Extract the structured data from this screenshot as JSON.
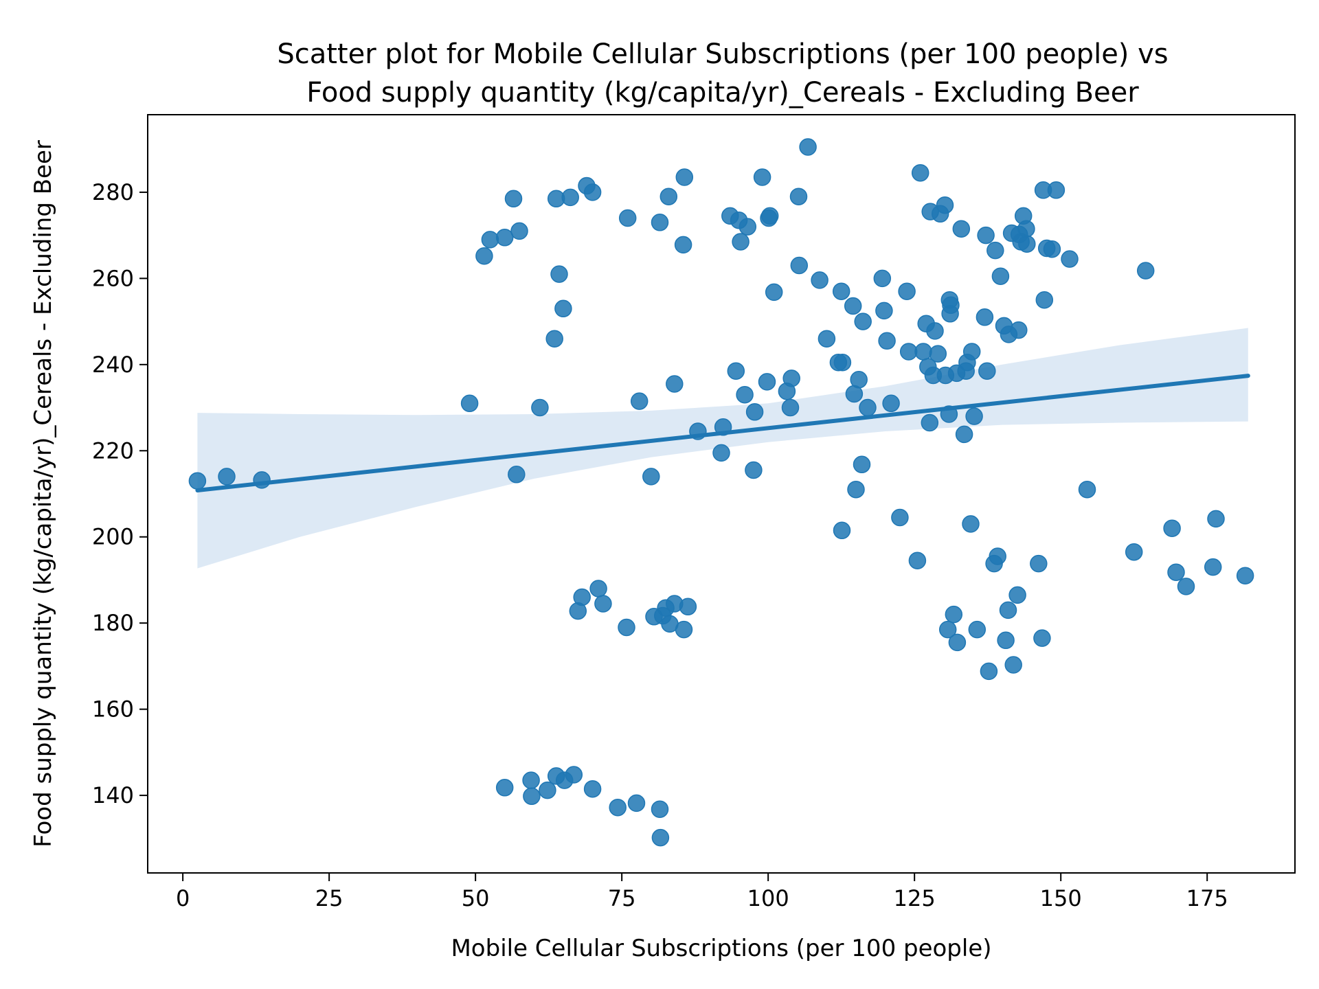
{
  "chart_data": {
    "type": "scatter",
    "title_lines": [
      "Scatter plot for Mobile Cellular Subscriptions (per 100 people) vs",
      "Food supply quantity (kg/capita/yr)_Cereals - Excluding Beer"
    ],
    "xlabel": "Mobile Cellular Subscriptions (per 100 people)",
    "ylabel": "Food supply quantity (kg/capita/yr)_Cereals - Excluding Beer",
    "xlim": [
      -6,
      190
    ],
    "ylim": [
      122,
      298
    ],
    "x_ticks": [
      0,
      25,
      50,
      75,
      100,
      125,
      150,
      175
    ],
    "y_ticks": [
      140,
      160,
      180,
      200,
      220,
      240,
      260,
      280
    ],
    "grid": false,
    "colors": {
      "points": "#1f77b4",
      "fit_line": "#1f77b4",
      "confidence_band": "#c6dbef"
    },
    "regression": {
      "start": [
        2.5,
        210.8
      ],
      "end": [
        182,
        237.4
      ]
    },
    "confidence_band": [
      {
        "x": 2.5,
        "lower": 192.7,
        "upper": 228.8
      },
      {
        "x": 20,
        "lower": 200,
        "upper": 228.5
      },
      {
        "x": 40,
        "lower": 207,
        "upper": 228.3
      },
      {
        "x": 60,
        "lower": 213.5,
        "upper": 228.5
      },
      {
        "x": 80,
        "lower": 218.5,
        "upper": 229.3
      },
      {
        "x": 100,
        "lower": 222,
        "upper": 231
      },
      {
        "x": 120,
        "lower": 224.5,
        "upper": 235
      },
      {
        "x": 140,
        "lower": 226,
        "upper": 240
      },
      {
        "x": 160,
        "lower": 226.5,
        "upper": 244.5
      },
      {
        "x": 182,
        "lower": 226.8,
        "upper": 248.5
      }
    ],
    "points": [
      [
        2.5,
        213
      ],
      [
        7.5,
        214
      ],
      [
        13.5,
        213.2
      ],
      [
        49,
        231
      ],
      [
        51.5,
        265.2
      ],
      [
        52.5,
        269
      ],
      [
        55,
        269.5
      ],
      [
        56.5,
        278.5
      ],
      [
        57.5,
        271
      ],
      [
        57,
        214.5
      ],
      [
        61,
        230
      ],
      [
        63.5,
        246
      ],
      [
        63.8,
        278.5
      ],
      [
        64.3,
        261
      ],
      [
        65,
        253
      ],
      [
        66.2,
        278.8
      ],
      [
        69,
        281.5
      ],
      [
        70,
        280
      ],
      [
        76,
        274
      ],
      [
        78,
        231.5
      ],
      [
        80,
        214
      ],
      [
        81.5,
        273
      ],
      [
        83,
        279
      ],
      [
        84,
        235.5
      ],
      [
        85.5,
        267.8
      ],
      [
        85.7,
        283.5
      ],
      [
        88,
        224.5
      ],
      [
        92,
        219.5
      ],
      [
        92.3,
        225.5
      ],
      [
        93.5,
        274.5
      ],
      [
        94.5,
        238.5
      ],
      [
        95,
        273.5
      ],
      [
        95.3,
        268.5
      ],
      [
        96,
        233
      ],
      [
        96.5,
        272
      ],
      [
        97.5,
        215.5
      ],
      [
        97.7,
        229
      ],
      [
        99,
        283.5
      ],
      [
        99.8,
        236
      ],
      [
        100.1,
        274
      ],
      [
        100.3,
        274.5
      ],
      [
        101,
        256.8
      ],
      [
        103.2,
        233.8
      ],
      [
        103.8,
        230
      ],
      [
        104,
        236.8
      ],
      [
        105.2,
        279
      ],
      [
        105.3,
        263
      ],
      [
        106.8,
        290.5
      ],
      [
        108.8,
        259.6
      ],
      [
        110,
        246
      ],
      [
        112,
        240.5
      ],
      [
        112.5,
        257
      ],
      [
        112.7,
        240.5
      ],
      [
        112.6,
        201.5
      ],
      [
        114.5,
        253.6
      ],
      [
        114.7,
        233.2
      ],
      [
        115,
        211
      ],
      [
        115.5,
        236.5
      ],
      [
        116.2,
        250
      ],
      [
        116,
        216.8
      ],
      [
        117,
        230
      ],
      [
        119.5,
        260
      ],
      [
        119.8,
        252.5
      ],
      [
        120.3,
        245.5
      ],
      [
        121,
        231
      ],
      [
        122.5,
        204.5
      ],
      [
        123.7,
        257
      ],
      [
        124,
        243
      ],
      [
        125.5,
        194.5
      ],
      [
        126,
        284.5
      ],
      [
        126.5,
        243
      ],
      [
        127,
        249.5
      ],
      [
        127.3,
        239.5
      ],
      [
        127.6,
        226.5
      ],
      [
        127.7,
        275.5
      ],
      [
        128.2,
        237.5
      ],
      [
        128.5,
        247.8
      ],
      [
        129,
        242.5
      ],
      [
        129.4,
        275
      ],
      [
        130.2,
        277
      ],
      [
        130.3,
        237.5
      ],
      [
        130.7,
        178.5
      ],
      [
        130.9,
        228.5
      ],
      [
        131,
        255
      ],
      [
        131.1,
        251.8
      ],
      [
        131.2,
        253.8
      ],
      [
        131.7,
        182
      ],
      [
        132.2,
        238
      ],
      [
        132.3,
        175.5
      ],
      [
        133,
        271.5
      ],
      [
        133.5,
        223.8
      ],
      [
        133.8,
        238.5
      ],
      [
        134,
        240.5
      ],
      [
        134.6,
        203
      ],
      [
        134.8,
        243
      ],
      [
        135.2,
        228
      ],
      [
        135.7,
        178.5
      ],
      [
        137,
        251
      ],
      [
        137.2,
        270
      ],
      [
        137.4,
        238.5
      ],
      [
        137.7,
        168.8
      ],
      [
        138.6,
        193.8
      ],
      [
        138.8,
        266.5
      ],
      [
        139.2,
        195.5
      ],
      [
        139.7,
        260.5
      ],
      [
        140.3,
        249
      ],
      [
        140.6,
        176
      ],
      [
        141,
        183
      ],
      [
        141.1,
        247
      ],
      [
        141.6,
        270.5
      ],
      [
        141.9,
        170.3
      ],
      [
        142.6,
        186.5
      ],
      [
        142.8,
        248
      ],
      [
        142.9,
        270.2
      ],
      [
        143.2,
        268.5
      ],
      [
        143.6,
        274.5
      ],
      [
        144.1,
        271.5
      ],
      [
        144.2,
        268
      ],
      [
        146.2,
        193.8
      ],
      [
        146.8,
        176.5
      ],
      [
        147,
        280.5
      ],
      [
        147.2,
        255
      ],
      [
        147.6,
        267
      ],
      [
        148.5,
        266.8
      ],
      [
        149.2,
        280.5
      ],
      [
        151.5,
        264.5
      ],
      [
        154.5,
        211
      ],
      [
        162.5,
        196.5
      ],
      [
        164.5,
        261.8
      ],
      [
        169,
        202
      ],
      [
        169.7,
        191.8
      ],
      [
        171.4,
        188.5
      ],
      [
        176,
        193
      ],
      [
        176.5,
        204.2
      ],
      [
        181.5,
        191
      ],
      [
        55,
        141.8
      ],
      [
        59.5,
        143.5
      ],
      [
        59.6,
        139.8
      ],
      [
        62.3,
        141.2
      ],
      [
        63.8,
        144.5
      ],
      [
        65.2,
        143.5
      ],
      [
        66.8,
        144.8
      ],
      [
        70,
        141.5
      ],
      [
        74.3,
        137.2
      ],
      [
        77.5,
        138.2
      ],
      [
        81.5,
        136.8
      ],
      [
        81.6,
        130.2
      ],
      [
        67.5,
        182.8
      ],
      [
        68.2,
        186
      ],
      [
        71,
        188
      ],
      [
        71.8,
        184.5
      ],
      [
        75.8,
        179
      ],
      [
        80.5,
        181.5
      ],
      [
        82,
        181.7
      ],
      [
        82.5,
        183.5
      ],
      [
        83.2,
        179.8
      ],
      [
        84,
        184.5
      ],
      [
        85.6,
        178.5
      ],
      [
        86.3,
        183.8
      ]
    ]
  }
}
